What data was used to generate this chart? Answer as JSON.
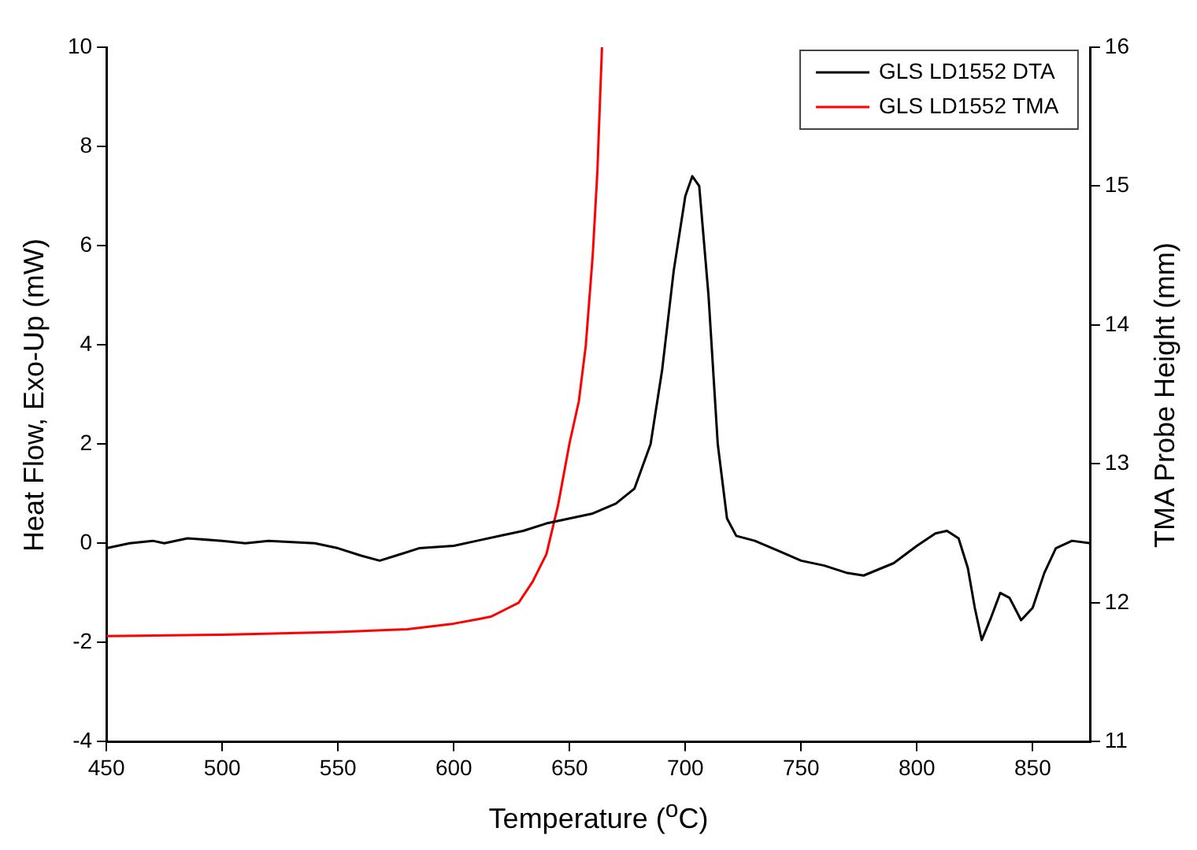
{
  "chart_data": {
    "type": "line",
    "xlabel": "Temperature ($^{o}$C)",
    "ylabel": "Heat Flow, Exo-Up (mW)",
    "y2label": "TMA Probe Height (mm)",
    "xlim": [
      450,
      875
    ],
    "xticks": [
      450,
      500,
      550,
      600,
      650,
      700,
      750,
      800,
      850
    ],
    "ylim": [
      -4,
      10
    ],
    "yticks": [
      -4,
      -2,
      0,
      2,
      4,
      6,
      8,
      10
    ],
    "y2lim": [
      11,
      16
    ],
    "y2ticks": [
      11,
      12,
      13,
      14,
      15,
      16
    ],
    "grid": false,
    "legend": "top right",
    "marker": "none",
    "line_style": "solid",
    "series": [
      {
        "name": "GLS LD1552 DTA",
        "color": "#000000",
        "x": [
          450,
          460,
          470,
          475,
          485,
          500,
          510,
          520,
          540,
          550,
          560,
          568,
          575,
          585,
          600,
          610,
          620,
          630,
          640,
          650,
          660,
          670,
          678,
          685,
          690,
          695,
          700,
          703,
          706,
          710,
          714,
          718,
          722,
          730,
          740,
          750,
          760,
          770,
          777,
          790,
          800,
          808,
          813,
          818,
          822,
          825,
          828,
          832,
          836,
          840,
          845,
          850,
          855,
          860,
          867,
          875
        ],
        "values": [
          -0.1,
          0.0,
          0.05,
          0.0,
          0.1,
          0.05,
          0.0,
          0.05,
          0.0,
          -0.1,
          -0.25,
          -0.35,
          -0.25,
          -0.1,
          -0.05,
          0.05,
          0.15,
          0.25,
          0.4,
          0.5,
          0.6,
          0.8,
          1.1,
          2.0,
          3.5,
          5.5,
          7.0,
          7.4,
          7.2,
          5.0,
          2.0,
          0.5,
          0.15,
          0.05,
          -0.15,
          -0.35,
          -0.45,
          -0.6,
          -0.65,
          -0.4,
          -0.05,
          0.2,
          0.25,
          0.1,
          -0.5,
          -1.3,
          -1.95,
          -1.5,
          -1.0,
          -1.1,
          -1.55,
          -1.3,
          -0.6,
          -0.1,
          0.05,
          0.0
        ]
      },
      {
        "name": "GLS LD1552 TMA",
        "color": "#ff0000",
        "axis": "y2",
        "x": [
          450,
          500,
          550,
          580,
          600,
          610,
          616,
          622,
          628,
          634,
          640,
          645,
          650,
          654,
          657,
          660,
          662,
          664
        ],
        "values": [
          11.76,
          11.77,
          11.79,
          11.81,
          11.85,
          11.88,
          11.9,
          11.95,
          12.0,
          12.15,
          12.35,
          12.7,
          13.15,
          13.45,
          13.85,
          14.5,
          15.1,
          16.0
        ]
      }
    ]
  }
}
